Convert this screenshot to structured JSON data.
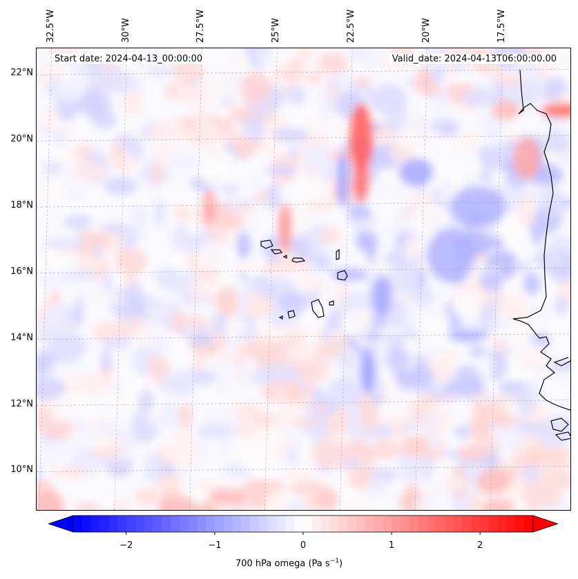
{
  "map": {
    "projection": "PlateCarree",
    "extent": {
      "lon_min": -33.0,
      "lon_max": -15.2,
      "lat_min": 8.8,
      "lat_max": 22.8
    },
    "lon_labels": [
      "32.5°W",
      "30°W",
      "27.5°W",
      "25°W",
      "22.5°W",
      "20°W",
      "17.5°W"
    ],
    "lon_values": [
      -32.5,
      -30,
      -27.5,
      -25,
      -22.5,
      -20,
      -17.5
    ],
    "lat_labels": [
      "22°N",
      "20°N",
      "18°N",
      "16°N",
      "14°N",
      "12°N",
      "10°N"
    ],
    "lat_values": [
      22,
      20,
      18,
      16,
      14,
      12,
      10
    ],
    "gridlines": true,
    "coastlines": true,
    "islands": "Cape Verde",
    "colormap": "bwr",
    "field_variable": "700 hPa omega"
  },
  "info": {
    "start_date": "Start date: 2024-04-13_00:00:00",
    "valid_date": "Valid_date: 2024-04-13T06:00:00.00"
  },
  "colorbar": {
    "min": -2.6,
    "max": 2.6,
    "extend": "both",
    "orientation": "horizontal",
    "ticks": [
      -2,
      -1,
      0,
      1,
      2
    ],
    "tick_labels": [
      "−2",
      "−1",
      "0",
      "1",
      "2"
    ],
    "label": "700 hPa omega (Pa s",
    "label_sup": "−1",
    "label_end": ")",
    "color_low": "#0000ff",
    "color_mid": "#ffffff",
    "color_high": "#ff0000"
  }
}
